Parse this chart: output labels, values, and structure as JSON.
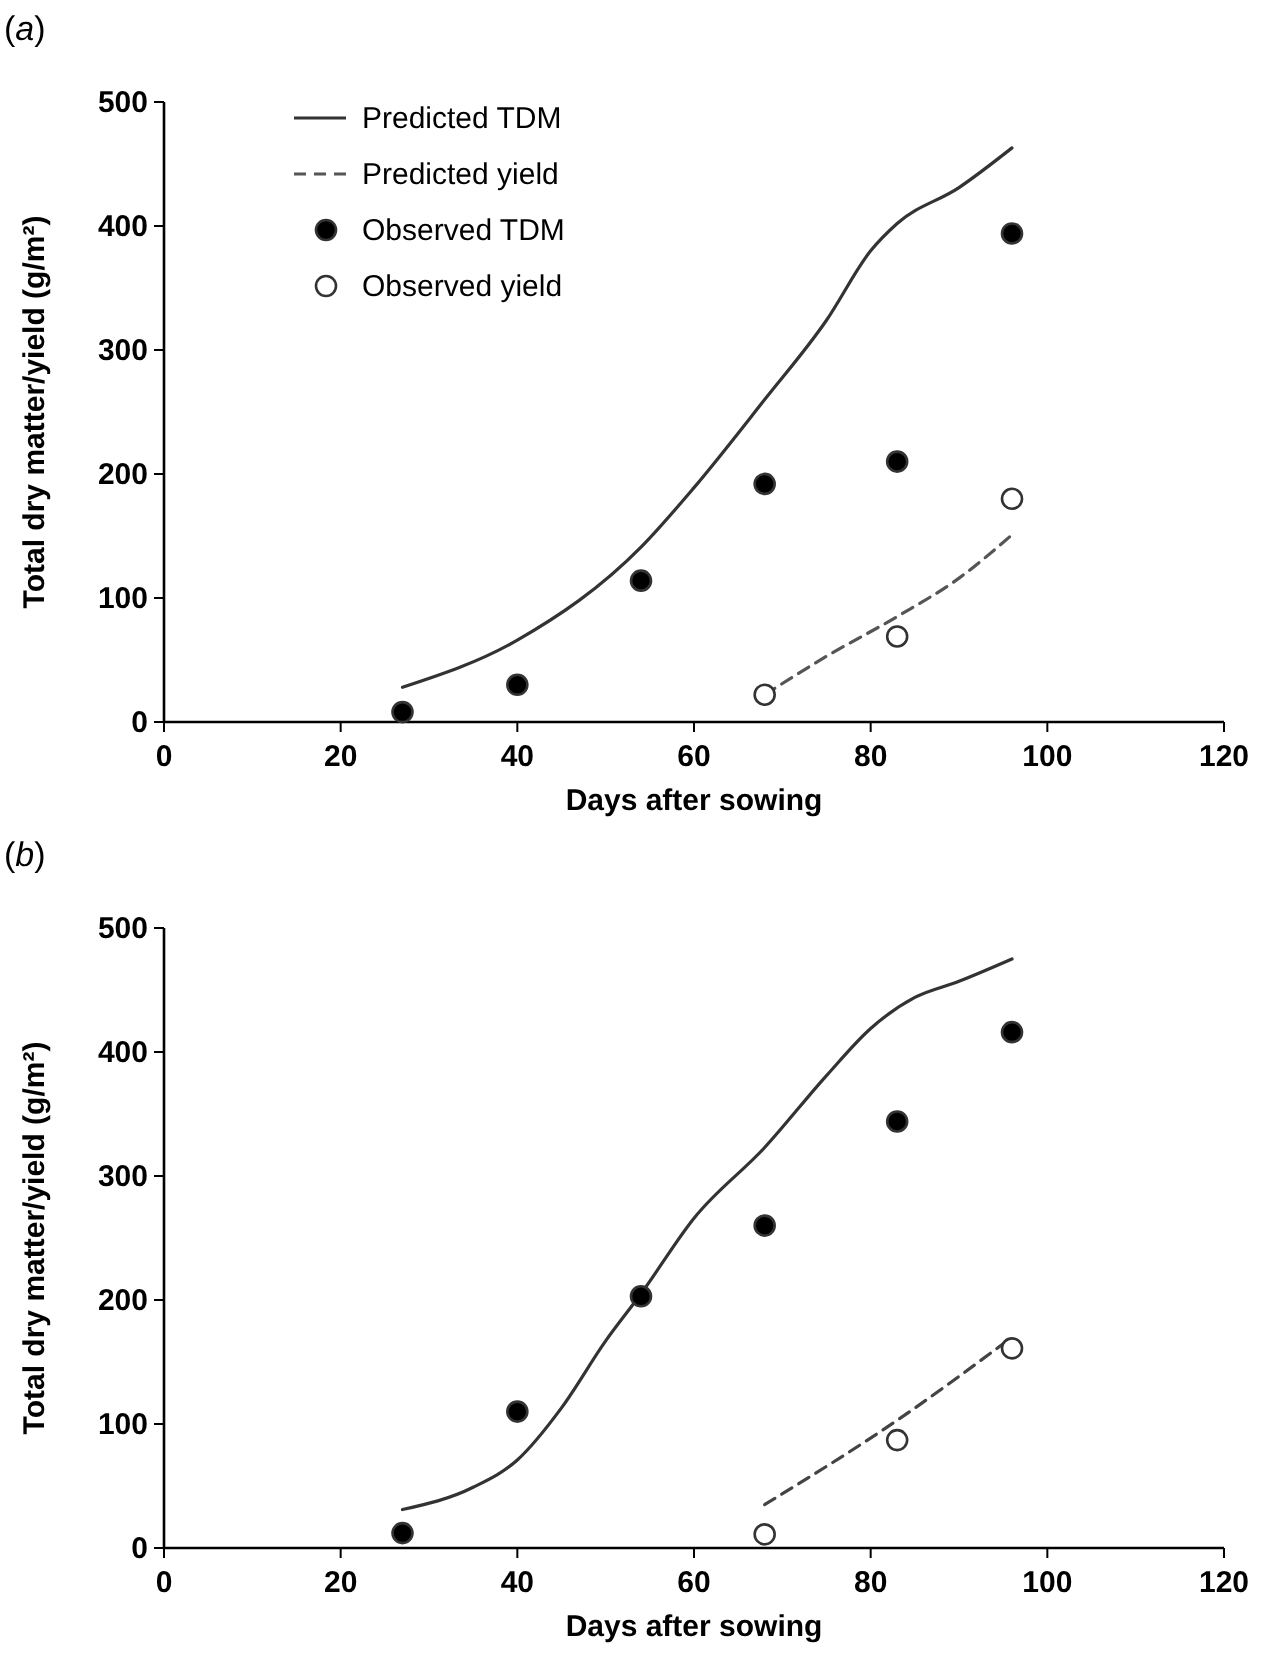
{
  "chart_data": [
    {
      "type": "line",
      "title": "(a)",
      "xlabel": "Days after sowing",
      "ylabel": "Total dry matter/yield (g/m²)",
      "xlim": [
        0,
        120
      ],
      "xticks": [
        0,
        20,
        40,
        60,
        80,
        100,
        120
      ],
      "ylim": [
        0,
        500
      ],
      "yticks": [
        0,
        100,
        200,
        300,
        400,
        500
      ],
      "grid": false,
      "legend": "top left",
      "series": [
        {
          "name": "Predicted TDM",
          "color": "#333333",
          "line_style": "solid",
          "marker": "none",
          "x": [
            27,
            40,
            54,
            60,
            68,
            75,
            80,
            83,
            90,
            96
          ],
          "values": [
            28,
            66,
            141,
            189,
            260,
            324,
            380,
            402,
            431,
            463
          ]
        },
        {
          "name": "Predicted yield",
          "color": "#555555",
          "line_style": "dashed",
          "marker": "none",
          "x": [
            68,
            75,
            83,
            90,
            96
          ],
          "values": [
            22,
            53,
            85,
            116,
            151
          ]
        },
        {
          "name": "Observed TDM",
          "type": "scatter",
          "color": "#000000",
          "marker": "circle",
          "x": [
            27,
            40,
            54,
            68,
            83,
            96
          ],
          "values": [
            8,
            30,
            114,
            192,
            210,
            394
          ]
        },
        {
          "name": "Observed yield",
          "type": "scatter",
          "color": "#ffffff",
          "marker": "circle",
          "x": [
            68,
            83,
            96
          ],
          "values": [
            22,
            69,
            180
          ]
        }
      ]
    },
    {
      "type": "line",
      "title": "(b)",
      "xlabel": "Days after sowing",
      "ylabel": "Total dry matter/yield (g/m²)",
      "xlim": [
        0,
        120
      ],
      "xticks": [
        0,
        20,
        40,
        60,
        80,
        100,
        120
      ],
      "ylim": [
        0,
        500
      ],
      "yticks": [
        0,
        100,
        200,
        300,
        400,
        500
      ],
      "grid": false,
      "series": [
        {
          "color": "#333333",
          "line_style": "solid",
          "marker": "none",
          "x": [
            27,
            35,
            40,
            45,
            50,
            54,
            60,
            68,
            75,
            80,
            85,
            90,
            96
          ],
          "values": [
            31,
            49,
            71,
            113,
            167,
            205,
            266,
            323,
            381,
            419,
            444,
            457,
            475
          ]
        },
        {
          "color": "#444444",
          "line_style": "dashed",
          "marker": "none",
          "x": [
            68,
            83,
            96
          ],
          "values": [
            35,
            103,
            170
          ]
        },
        {
          "type": "scatter",
          "color": "#000000",
          "marker": "circle",
          "x": [
            27,
            40,
            54,
            68,
            83,
            96
          ],
          "values": [
            12,
            110,
            203,
            260,
            344,
            416
          ]
        },
        {
          "type": "scatter",
          "color": "#ffffff",
          "marker": "circle",
          "x": [
            68,
            83,
            96
          ],
          "values": [
            11,
            87,
            161
          ]
        }
      ]
    }
  ]
}
